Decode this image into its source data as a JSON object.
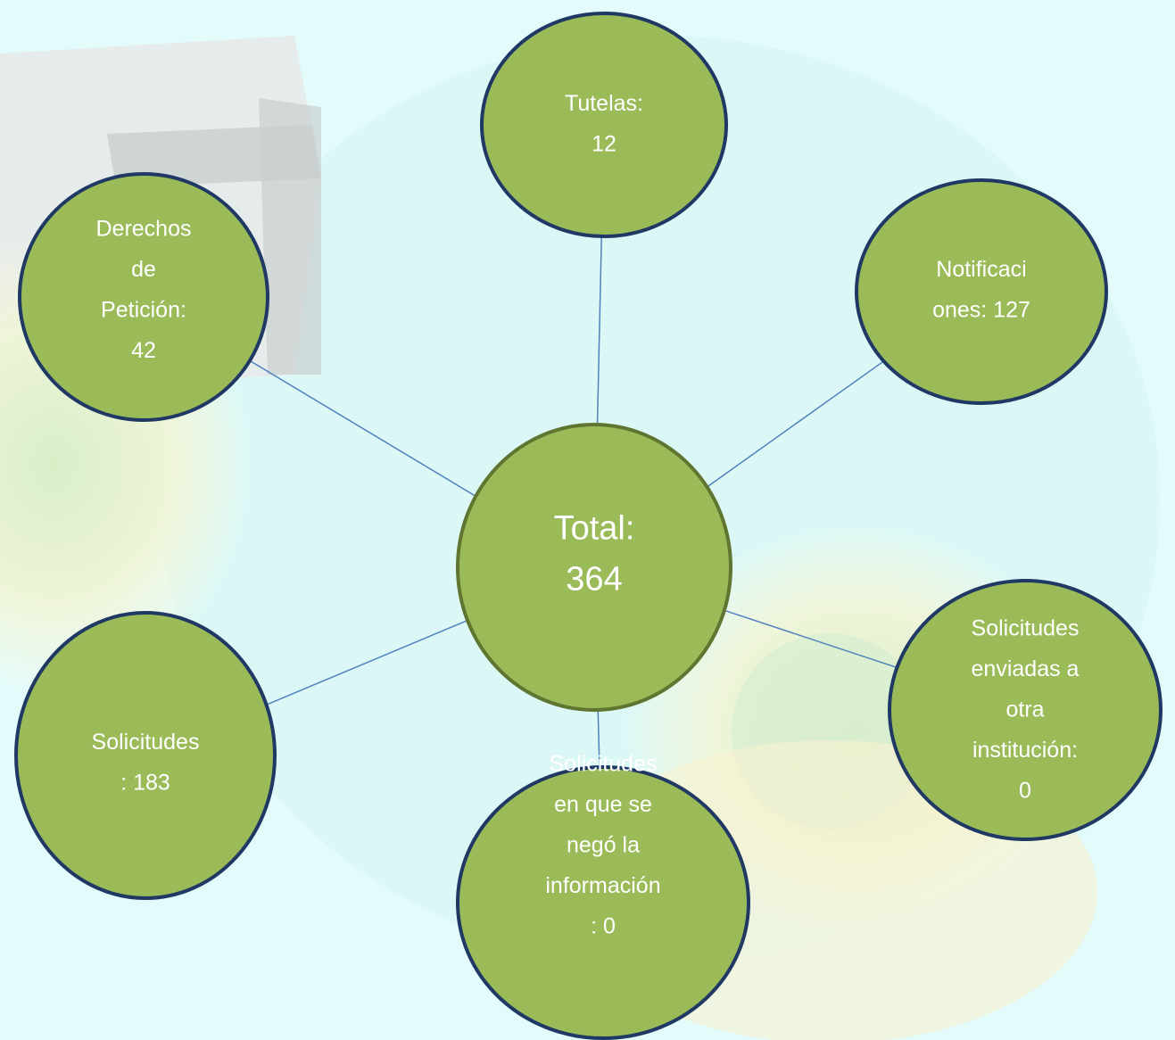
{
  "center": {
    "lines": [
      "Total:",
      "364"
    ]
  },
  "nodes": [
    {
      "lines": [
        "Tutelas:",
        "12"
      ]
    },
    {
      "lines": [
        "Notificaci",
        "ones: 127"
      ]
    },
    {
      "lines": [
        "Solicitudes",
        "enviadas a",
        "otra",
        "institución:",
        "0"
      ]
    },
    {
      "lines": [
        "Solicitudes",
        "en que se",
        "negó la",
        "información",
        ": 0"
      ]
    },
    {
      "lines": [
        "Solicitudes",
        ": 183"
      ]
    },
    {
      "lines": [
        "Derechos",
        "de",
        "Petición:",
        "42"
      ]
    }
  ]
}
